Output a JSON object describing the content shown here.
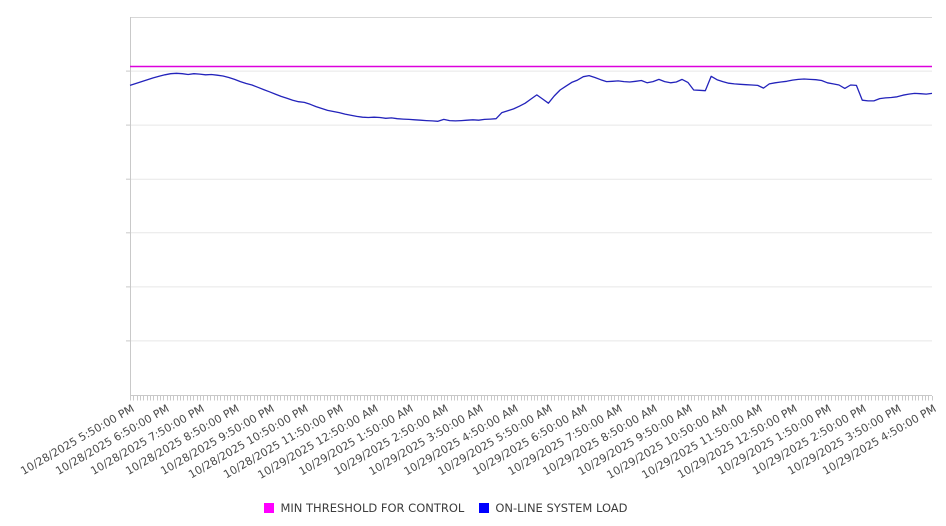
{
  "chart_data": {
    "type": "line",
    "title": "",
    "xlabel": "",
    "ylabel": "",
    "x_axis": {
      "tick_labels": [
        "10/28/2025 5:50:00 PM",
        "10/28/2025 6:50:00 PM",
        "10/28/2025 7:50:00 PM",
        "10/28/2025 8:50:00 PM",
        "10/28/2025 9:50:00 PM",
        "10/28/2025 10:50:00 PM",
        "10/28/2025 11:50:00 PM",
        "10/29/2025 12:50:00 AM",
        "10/29/2025 1:50:00 AM",
        "10/29/2025 2:50:00 AM",
        "10/29/2025 3:50:00 AM",
        "10/29/2025 4:50:00 AM",
        "10/29/2025 5:50:00 AM",
        "10/29/2025 6:50:00 AM",
        "10/29/2025 7:50:00 AM",
        "10/29/2025 8:50:00 AM",
        "10/29/2025 9:50:00 AM",
        "10/29/2025 10:50:00 AM",
        "10/29/2025 11:50:00 AM",
        "10/29/2025 12:50:00 PM",
        "10/29/2025 1:50:00 PM",
        "10/29/2025 2:50:00 PM",
        "10/29/2025 3:50:00 PM",
        "10/29/2025 4:50:00 PM"
      ],
      "label_rotation_deg": -30,
      "points_per_hour": 6,
      "minor_ticks": true
    },
    "y_axis": {
      "tick_labels_visible": false,
      "scale": "percent-of-plot-height (no numeric labels shown in chart)",
      "range": [
        0,
        100
      ],
      "gridlines_at": [
        0,
        14.3,
        28.6,
        42.9,
        57.1,
        71.4,
        85.7,
        100
      ]
    },
    "legend_position": "bottom-center",
    "grid": "horizontal-only",
    "series": [
      {
        "name": "MIN THRESHOLD FOR CONTROL",
        "kind": "constant-threshold",
        "swatch_color": "#ff00ff",
        "line_color": "#dd00dd",
        "value": 86.9
      },
      {
        "name": "ON-LINE SYSTEM LOAD",
        "kind": "line",
        "swatch_color": "#0000ff",
        "line_color": "#2323bb",
        "values": [
          81.9,
          82.4,
          82.9,
          83.4,
          83.9,
          84.3,
          84.7,
          85.0,
          85.1,
          85.0,
          84.8,
          85.0,
          84.9,
          84.7,
          84.8,
          84.6,
          84.4,
          84.0,
          83.5,
          82.9,
          82.4,
          82.0,
          81.4,
          80.8,
          80.2,
          79.6,
          79.0,
          78.5,
          78.0,
          77.6,
          77.4,
          76.9,
          76.3,
          75.8,
          75.3,
          75.0,
          74.7,
          74.3,
          74.0,
          73.7,
          73.5,
          73.4,
          73.5,
          73.4,
          73.2,
          73.3,
          73.1,
          73.0,
          72.9,
          72.8,
          72.7,
          72.6,
          72.5,
          72.4,
          72.9,
          72.6,
          72.5,
          72.6,
          72.7,
          72.8,
          72.7,
          72.9,
          73.0,
          73.1,
          74.7,
          75.2,
          75.7,
          76.4,
          77.2,
          78.3,
          79.4,
          78.3,
          77.2,
          79.1,
          80.7,
          81.7,
          82.7,
          83.3,
          84.2,
          84.5,
          84.0,
          83.4,
          82.9,
          83.0,
          83.1,
          82.9,
          82.8,
          83.0,
          83.2,
          82.6,
          82.9,
          83.5,
          82.9,
          82.6,
          82.8,
          83.5,
          82.7,
          80.7,
          80.6,
          80.5,
          84.3,
          83.4,
          82.9,
          82.5,
          82.3,
          82.2,
          82.1,
          82.0,
          81.9,
          81.2,
          82.3,
          82.6,
          82.8,
          83.0,
          83.3,
          83.5,
          83.6,
          83.5,
          83.4,
          83.2,
          82.6,
          82.3,
          82.0,
          81.1,
          82.0,
          81.9,
          78.0,
          77.8,
          77.8,
          78.4,
          78.6,
          78.7,
          78.9,
          79.3,
          79.6,
          79.8,
          79.7,
          79.6,
          79.8
        ]
      }
    ]
  },
  "legend": {
    "items": [
      {
        "label": "MIN THRESHOLD FOR CONTROL",
        "color": "#ff00ff"
      },
      {
        "label": "ON-LINE SYSTEM LOAD",
        "color": "#0000ff"
      }
    ]
  },
  "colors": {
    "background": "#ffffff",
    "plot_border": "#d7d7d7",
    "gridline": "#e7e7e7",
    "axis_line": "#c9c9c9",
    "tick_mark": "#c9c9c9",
    "x_label_text": "#4a4a4a",
    "legend_text": "#3d3d3d"
  }
}
